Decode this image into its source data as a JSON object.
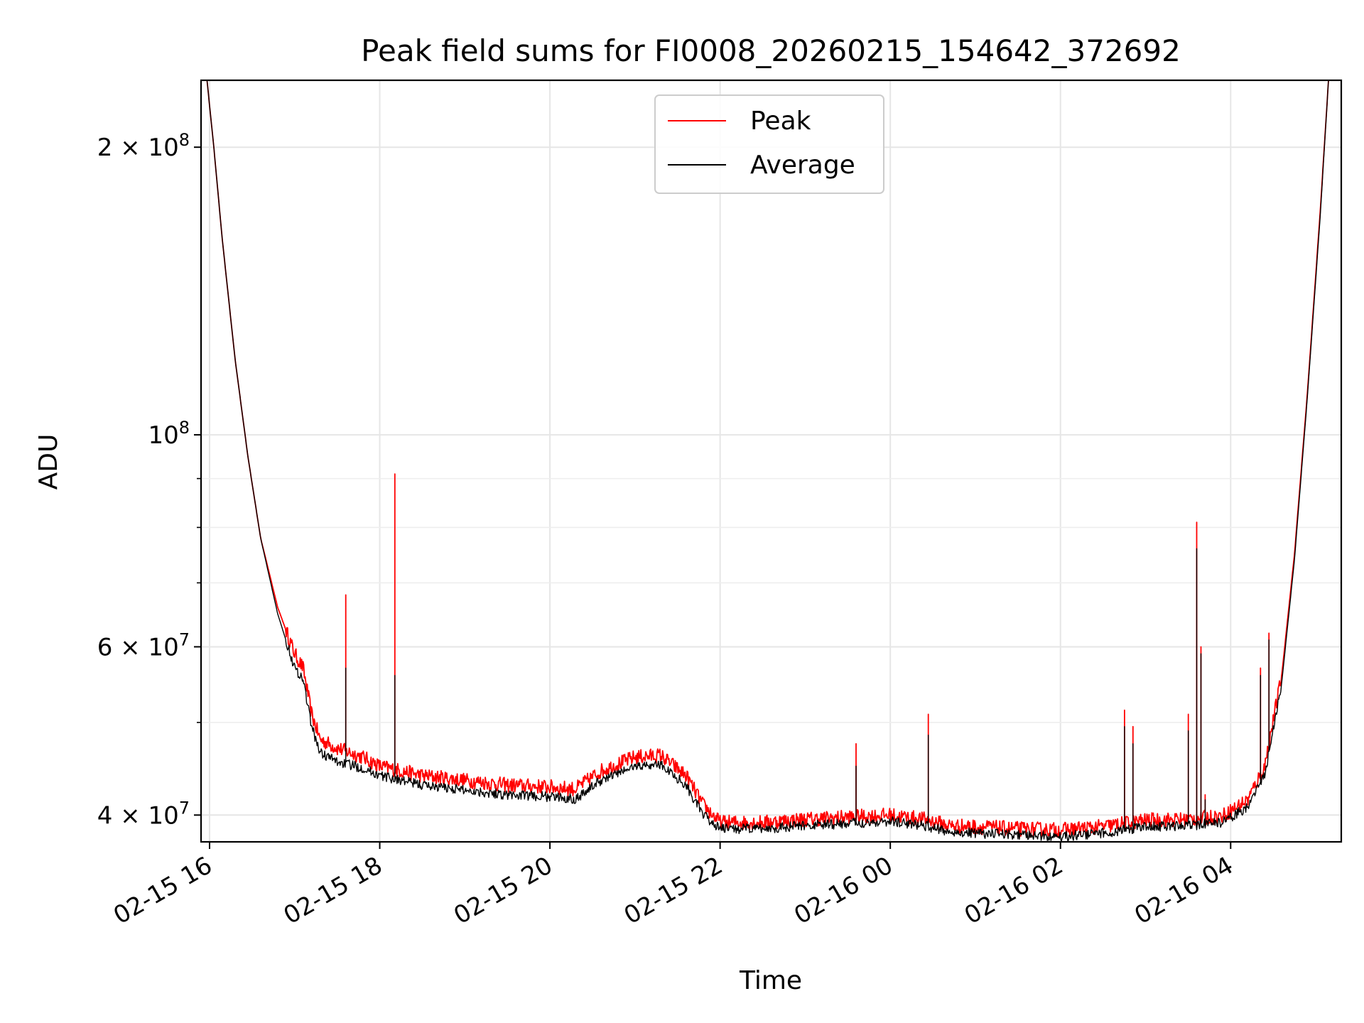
{
  "chart_data": {
    "type": "line",
    "title": "Peak field sums for FI0008_20260215_154642_372692",
    "xlabel": "Time",
    "ylabel": "ADU",
    "yscale": "log",
    "grid": true,
    "legend_position": "upper center",
    "x_unit": "hours since 02-15 00:00",
    "xlim": [
      15.9,
      29.3
    ],
    "ylim": [
      37500000,
      235000000
    ],
    "x_tick_labels": [
      {
        "value": 16,
        "label": "02-15 16"
      },
      {
        "value": 18,
        "label": "02-15 18"
      },
      {
        "value": 20,
        "label": "02-15 20"
      },
      {
        "value": 22,
        "label": "02-15 22"
      },
      {
        "value": 24,
        "label": "02-16 00"
      },
      {
        "value": 26,
        "label": "02-16 02"
      },
      {
        "value": 28,
        "label": "02-16 04"
      }
    ],
    "y_tick_labels": [
      {
        "value": 40000000,
        "label": "4 × 10",
        "exp": "7"
      },
      {
        "value": 60000000,
        "label": "6 × 10",
        "exp": "7"
      },
      {
        "value": 100000000,
        "label": "10",
        "exp": "8"
      },
      {
        "value": 200000000,
        "label": "2 × 10",
        "exp": "8"
      }
    ],
    "y_minor_ticks": [
      50000000,
      70000000,
      80000000,
      90000000
    ],
    "series": [
      {
        "name": "Peak",
        "color": "#ff0000",
        "baseline": [
          [
            15.97,
            235000000
          ],
          [
            16.05,
            200000000
          ],
          [
            16.15,
            160000000
          ],
          [
            16.3,
            120000000
          ],
          [
            16.45,
            95000000
          ],
          [
            16.6,
            78000000
          ],
          [
            16.8,
            66000000
          ],
          [
            17.0,
            59000000
          ],
          [
            17.1,
            57000000
          ],
          [
            17.2,
            51000000
          ],
          [
            17.3,
            48000000
          ],
          [
            17.5,
            47000000
          ],
          [
            17.8,
            46000000
          ],
          [
            18.0,
            45000000
          ],
          [
            18.5,
            44000000
          ],
          [
            19.0,
            43500000
          ],
          [
            19.5,
            43000000
          ],
          [
            20.0,
            42800000
          ],
          [
            20.3,
            42600000
          ],
          [
            20.6,
            44500000
          ],
          [
            21.0,
            46000000
          ],
          [
            21.3,
            46200000
          ],
          [
            21.6,
            44000000
          ],
          [
            21.8,
            41000000
          ],
          [
            22.0,
            39300000
          ],
          [
            22.5,
            39300000
          ],
          [
            23.0,
            39600000
          ],
          [
            23.5,
            39800000
          ],
          [
            24.0,
            40000000
          ],
          [
            24.4,
            39600000
          ],
          [
            24.7,
            39000000
          ],
          [
            25.0,
            38900000
          ],
          [
            25.5,
            38700000
          ],
          [
            26.0,
            38600000
          ],
          [
            26.5,
            38900000
          ],
          [
            27.0,
            39500000
          ],
          [
            27.5,
            39600000
          ],
          [
            27.9,
            39900000
          ],
          [
            28.2,
            41500000
          ],
          [
            28.4,
            45000000
          ],
          [
            28.6,
            56000000
          ],
          [
            28.75,
            75000000
          ],
          [
            28.9,
            110000000
          ],
          [
            29.05,
            170000000
          ],
          [
            29.15,
            235000000
          ]
        ],
        "spikes": [
          [
            17.6,
            68000000
          ],
          [
            18.18,
            91000000
          ],
          [
            23.6,
            47500000
          ],
          [
            24.45,
            51000000
          ],
          [
            26.75,
            51500000
          ],
          [
            26.85,
            49500000
          ],
          [
            27.5,
            51000000
          ],
          [
            27.6,
            81000000
          ],
          [
            27.65,
            60000000
          ],
          [
            27.7,
            42000000
          ],
          [
            28.35,
            57000000
          ],
          [
            28.45,
            62000000
          ]
        ],
        "noise_fraction": 0.018
      },
      {
        "name": "Average",
        "color": "#000000",
        "baseline": [
          [
            15.97,
            235000000
          ],
          [
            16.05,
            200000000
          ],
          [
            16.15,
            160000000
          ],
          [
            16.3,
            120000000
          ],
          [
            16.45,
            95000000
          ],
          [
            16.6,
            78000000
          ],
          [
            16.8,
            65000000
          ],
          [
            17.0,
            57000000
          ],
          [
            17.1,
            55500000
          ],
          [
            17.2,
            49500000
          ],
          [
            17.3,
            46500000
          ],
          [
            17.5,
            45500000
          ],
          [
            17.8,
            44800000
          ],
          [
            18.0,
            44000000
          ],
          [
            18.5,
            43000000
          ],
          [
            19.0,
            42500000
          ],
          [
            19.5,
            42000000
          ],
          [
            20.0,
            41800000
          ],
          [
            20.3,
            41600000
          ],
          [
            20.6,
            43500000
          ],
          [
            21.0,
            45000000
          ],
          [
            21.3,
            45200000
          ],
          [
            21.6,
            43000000
          ],
          [
            21.8,
            40000000
          ],
          [
            22.0,
            38700000
          ],
          [
            22.5,
            38700000
          ],
          [
            23.0,
            39000000
          ],
          [
            23.5,
            39200000
          ],
          [
            24.0,
            39400000
          ],
          [
            24.4,
            39000000
          ],
          [
            24.7,
            38400000
          ],
          [
            25.0,
            38300000
          ],
          [
            25.5,
            38100000
          ],
          [
            26.0,
            38000000
          ],
          [
            26.5,
            38300000
          ],
          [
            27.0,
            38900000
          ],
          [
            27.5,
            39000000
          ],
          [
            27.9,
            39300000
          ],
          [
            28.2,
            40800000
          ],
          [
            28.4,
            44000000
          ],
          [
            28.6,
            55000000
          ],
          [
            28.75,
            74000000
          ],
          [
            28.9,
            109000000
          ],
          [
            29.05,
            168000000
          ],
          [
            29.15,
            235000000
          ]
        ],
        "spikes": [
          [
            17.6,
            57000000
          ],
          [
            18.18,
            56000000
          ],
          [
            23.6,
            45000000
          ],
          [
            24.45,
            48500000
          ],
          [
            26.75,
            49500000
          ],
          [
            26.85,
            47500000
          ],
          [
            27.5,
            49000000
          ],
          [
            27.6,
            76000000
          ],
          [
            27.65,
            59000000
          ],
          [
            27.7,
            41500000
          ],
          [
            28.35,
            56000000
          ],
          [
            28.45,
            61000000
          ]
        ],
        "noise_fraction": 0.012
      }
    ]
  }
}
